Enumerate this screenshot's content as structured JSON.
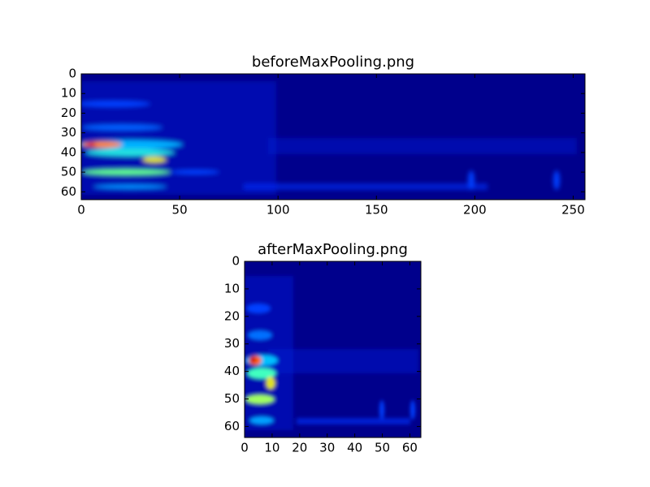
{
  "chart_data": [
    {
      "type": "image",
      "title": "beforeMaxPooling.png",
      "xlim": [
        0,
        256
      ],
      "ylim": [
        64,
        0
      ],
      "xticks": [
        0,
        50,
        100,
        150,
        200,
        250
      ],
      "yticks": [
        0,
        10,
        20,
        30,
        40,
        50,
        60
      ]
    },
    {
      "type": "image",
      "title": "afterMaxPooling.png",
      "xlim": [
        0,
        64
      ],
      "ylim": [
        64,
        0
      ],
      "xticks": [
        0,
        10,
        20,
        30,
        40,
        50,
        60
      ],
      "yticks": [
        0,
        10,
        20,
        30,
        40,
        50,
        60
      ]
    }
  ]
}
